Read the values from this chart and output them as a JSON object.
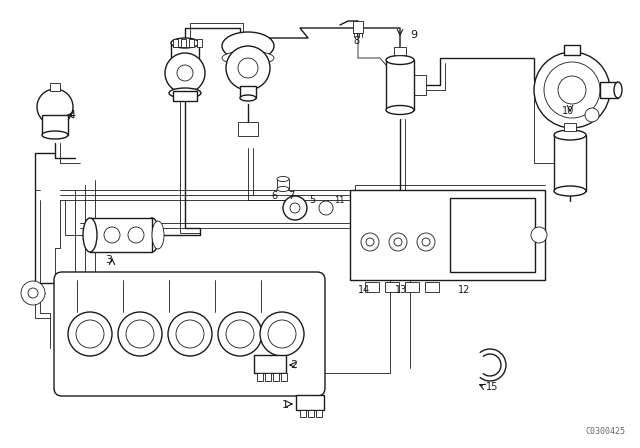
{
  "bg_color": "#ffffff",
  "line_color": "#1a1a1a",
  "watermark": "C0300425",
  "lw_thick": 1.4,
  "lw_med": 1.0,
  "lw_thin": 0.6
}
